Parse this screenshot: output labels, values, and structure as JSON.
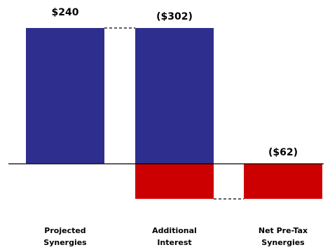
{
  "chart_data": {
    "type": "bar",
    "subtype": "waterfall",
    "title": "",
    "xlabel": "",
    "ylabel": "",
    "categories": [
      [
        "Projected",
        "Synergies"
      ],
      [
        "Additional",
        "Interest"
      ],
      [
        "Net Pre-Tax",
        "Synergies"
      ]
    ],
    "values": [
      240,
      -302,
      -62
    ],
    "data_labels": [
      "$240",
      "($302)",
      "($62)"
    ],
    "ylim": [
      -62,
      240
    ],
    "grid": false,
    "legend": "none",
    "colors": {
      "positive": "#2e2e8f",
      "negative": "#cc0000",
      "axis": "#000000",
      "connector": "#000000"
    }
  }
}
